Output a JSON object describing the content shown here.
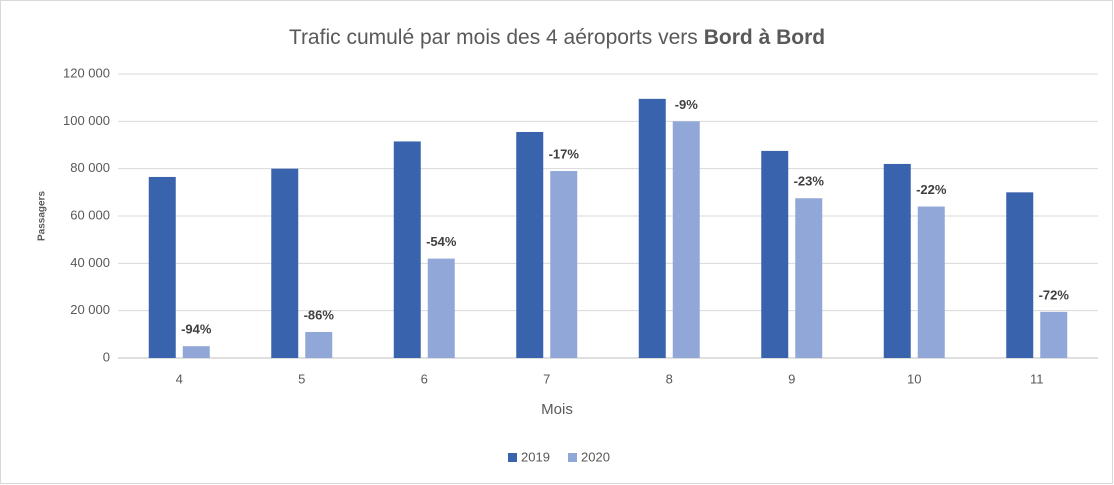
{
  "chart_data": {
    "type": "bar",
    "title_parts": [
      "Trafic cumulé par mois des 4 aéroports vers",
      "Bord à Bord"
    ],
    "x_label": "Mois",
    "y_label": "Passagers",
    "categories": [
      "4",
      "5",
      "6",
      "7",
      "8",
      "9",
      "10",
      "11"
    ],
    "series": [
      {
        "name": "2019",
        "color": "#3a63ad",
        "values": [
          76500,
          80000,
          91500,
          95500,
          109500,
          87500,
          82000,
          70000
        ]
      },
      {
        "name": "2020",
        "color": "#91a7d8",
        "values": [
          5000,
          11000,
          42000,
          79000,
          100000,
          67500,
          64000,
          19500
        ]
      }
    ],
    "annotations": [
      "-94%",
      "-86%",
      "-54%",
      "-17%",
      "-9%",
      "-23%",
      "-22%",
      "-72%"
    ],
    "ylim": [
      0,
      120000
    ],
    "yticks": [
      0,
      {
        "value": 20000,
        "label": "20 000"
      },
      {
        "value": 40000,
        "label": "40 000"
      },
      {
        "value": 60000,
        "label": "60 000"
      },
      {
        "value": 80000,
        "label": "80 000"
      },
      {
        "value": 100000,
        "label": "100 000"
      },
      {
        "value": 120000,
        "label": "120 000"
      }
    ],
    "grid": true,
    "legend": "bottom"
  }
}
